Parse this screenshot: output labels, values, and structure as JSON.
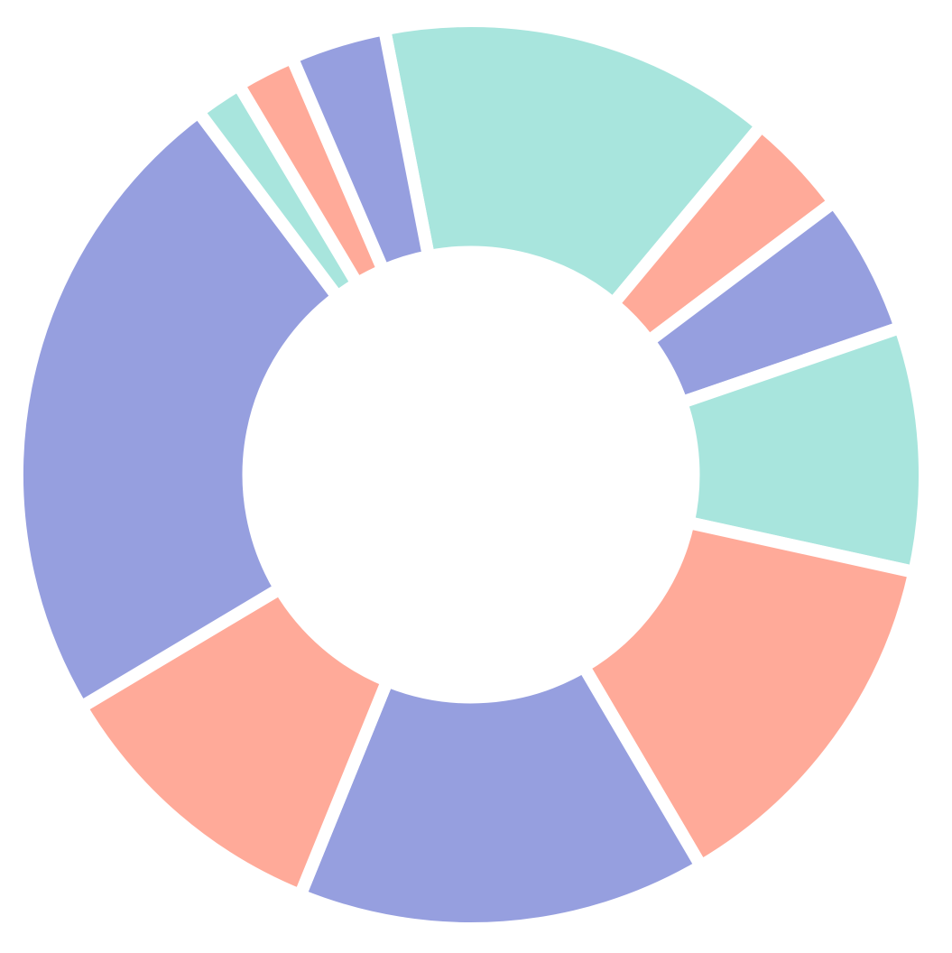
{
  "chart_data": {
    "type": "pie",
    "style": "donut",
    "title": "",
    "legend": "none",
    "grid": false,
    "start_angle_deg": -11,
    "direction": "clockwise",
    "hole_ratio": 0.49,
    "slices": [
      {
        "value": 14.1,
        "color": "#A8E5DD"
      },
      {
        "value": 3.7,
        "color": "#FFAA99"
      },
      {
        "value": 5.0,
        "color": "#969FDF"
      },
      {
        "value": 8.7,
        "color": "#A8E5DD"
      },
      {
        "value": 13.1,
        "color": "#FFAA99"
      },
      {
        "value": 14.6,
        "color": "#969FDF"
      },
      {
        "value": 10.3,
        "color": "#FFAA99"
      },
      {
        "value": 23.3,
        "color": "#969FDF"
      },
      {
        "value": 1.7,
        "color": "#A8E5DD"
      },
      {
        "value": 2.1,
        "color": "#FFAA99"
      },
      {
        "value": 3.4,
        "color": "#969FDF"
      }
    ]
  }
}
